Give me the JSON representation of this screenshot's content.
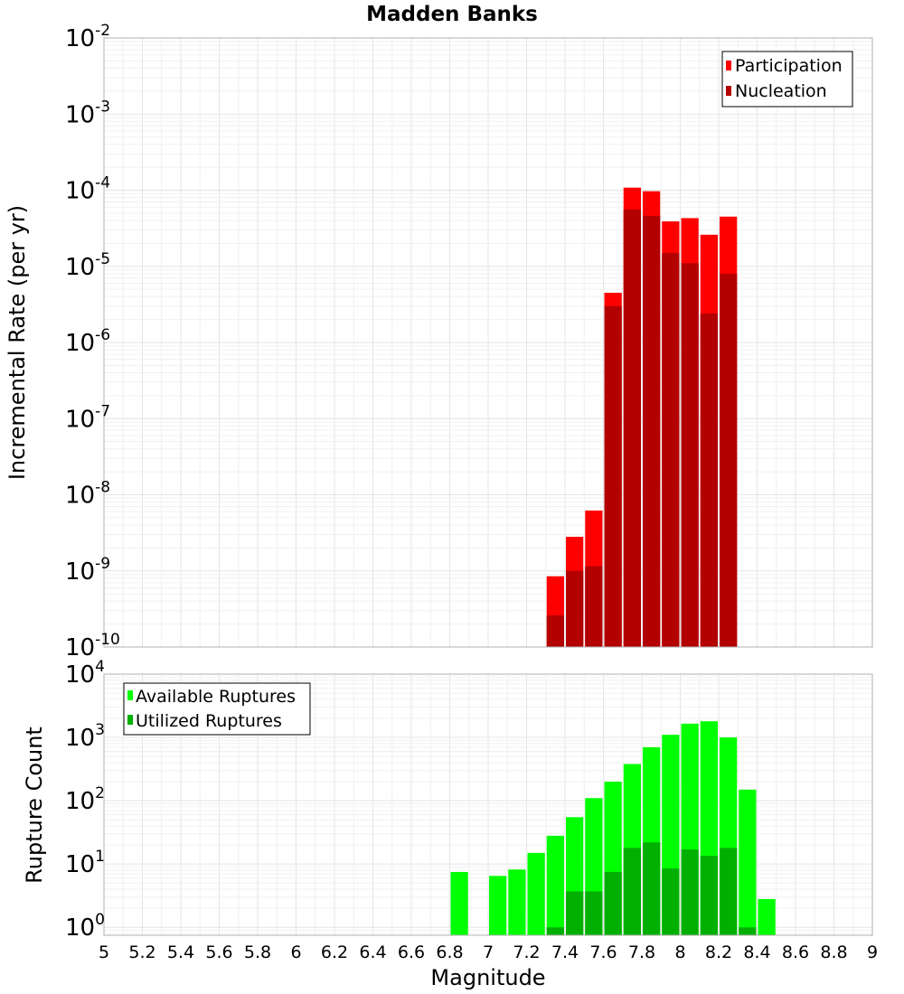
{
  "title": "Madden Banks",
  "xlabel": "Magnitude",
  "x_ticks": [
    "5",
    "5.2",
    "5.4",
    "5.6",
    "5.8",
    "6",
    "6.2",
    "6.4",
    "6.6",
    "6.8",
    "7",
    "7.2",
    "7.4",
    "7.6",
    "7.8",
    "8",
    "8.2",
    "8.4",
    "8.6",
    "8.8",
    "9"
  ],
  "xlim": [
    5,
    9
  ],
  "chart_data": [
    {
      "type": "bar",
      "panel": "top",
      "ylabel": "Incremental Rate (per yr)",
      "yscale": "log",
      "ylim": [
        1e-10,
        0.01
      ],
      "y_ticks": [
        {
          "base": "10",
          "exp": "-10",
          "value": 1e-10
        },
        {
          "base": "10",
          "exp": "-9",
          "value": 1e-09
        },
        {
          "base": "10",
          "exp": "-8",
          "value": 1e-08
        },
        {
          "base": "10",
          "exp": "-7",
          "value": 1e-07
        },
        {
          "base": "10",
          "exp": "-6",
          "value": 1e-06
        },
        {
          "base": "10",
          "exp": "-5",
          "value": 1e-05
        },
        {
          "base": "10",
          "exp": "-4",
          "value": 0.0001
        },
        {
          "base": "10",
          "exp": "-3",
          "value": 0.001
        },
        {
          "base": "10",
          "exp": "-2",
          "value": 0.01
        }
      ],
      "grid": true,
      "legend_position": "top-right",
      "bin_width": 0.1,
      "series": [
        {
          "name": "Participation",
          "color": "#ff0000",
          "points": [
            [
              7.35,
              8.5e-10
            ],
            [
              7.45,
              2.8e-09
            ],
            [
              7.55,
              6.2e-09
            ],
            [
              7.65,
              4.5e-06
            ],
            [
              7.75,
              0.000108
            ],
            [
              7.85,
              9.7e-05
            ],
            [
              7.95,
              3.9e-05
            ],
            [
              8.05,
              4.3e-05
            ],
            [
              8.15,
              2.6e-05
            ],
            [
              8.25,
              4.5e-05
            ]
          ]
        },
        {
          "name": "Nucleation",
          "color": "#b30000",
          "points": [
            [
              7.35,
              2.6e-10
            ],
            [
              7.45,
              1e-09
            ],
            [
              7.55,
              1.15e-09
            ],
            [
              7.65,
              3e-06
            ],
            [
              7.75,
              5.6e-05
            ],
            [
              7.85,
              4.6e-05
            ],
            [
              7.95,
              1.5e-05
            ],
            [
              8.05,
              1.1e-05
            ],
            [
              8.15,
              2.4e-06
            ],
            [
              8.25,
              8e-06
            ]
          ]
        }
      ]
    },
    {
      "type": "bar",
      "panel": "bottom",
      "ylabel": "Rupture Count",
      "yscale": "log",
      "ylim": [
        0.75,
        10000
      ],
      "y_ticks": [
        {
          "base": "10",
          "exp": "0",
          "value": 1
        },
        {
          "base": "10",
          "exp": "1",
          "value": 10
        },
        {
          "base": "10",
          "exp": "2",
          "value": 100
        },
        {
          "base": "10",
          "exp": "3",
          "value": 1000
        },
        {
          "base": "10",
          "exp": "4",
          "value": 10000
        }
      ],
      "grid": true,
      "legend_position": "top-left",
      "bin_width": 0.1,
      "series": [
        {
          "name": "Available Ruptures",
          "color": "#00ff00",
          "points": [
            [
              6.85,
              7.5
            ],
            [
              7.05,
              6.5
            ],
            [
              7.15,
              8.2
            ],
            [
              7.25,
              15
            ],
            [
              7.35,
              28
            ],
            [
              7.45,
              55
            ],
            [
              7.55,
              110
            ],
            [
              7.65,
              200
            ],
            [
              7.75,
              380
            ],
            [
              7.85,
              700
            ],
            [
              7.95,
              1100
            ],
            [
              8.05,
              1650
            ],
            [
              8.15,
              1800
            ],
            [
              8.25,
              1000
            ],
            [
              8.35,
              150
            ],
            [
              8.45,
              2.8
            ]
          ]
        },
        {
          "name": "Utilized Ruptures",
          "color": "#00b000",
          "points": [
            [
              7.35,
              1
            ],
            [
              7.45,
              3.7
            ],
            [
              7.55,
              3.7
            ],
            [
              7.65,
              7.5
            ],
            [
              7.75,
              18
            ],
            [
              7.85,
              22
            ],
            [
              7.95,
              8.5
            ],
            [
              8.05,
              17
            ],
            [
              8.15,
              13.5
            ],
            [
              8.25,
              18
            ],
            [
              8.35,
              1
            ]
          ]
        }
      ]
    }
  ]
}
